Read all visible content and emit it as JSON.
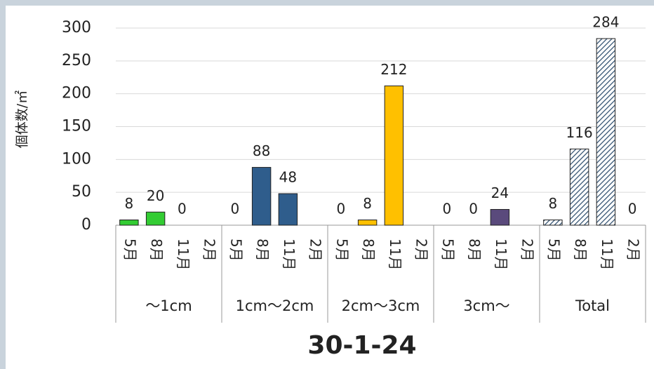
{
  "chart_data": {
    "type": "bar",
    "title": "30-1-24",
    "ylabel": "個体数/㎡",
    "categories": [
      "5月",
      "8月",
      "11月",
      "2月"
    ],
    "groups": [
      {
        "name": "～1cm",
        "color": "#33cc33",
        "values": [
          8,
          20,
          0,
          null
        ]
      },
      {
        "name": "1cm～2cm",
        "color": "#2f5d8c",
        "values": [
          0,
          88,
          48,
          null
        ]
      },
      {
        "name": "2cm～3cm",
        "color": "#ffc000",
        "values": [
          0,
          8,
          212,
          null
        ]
      },
      {
        "name": "3cm～",
        "color": "#5a4a7c",
        "values": [
          0,
          0,
          24,
          null
        ]
      },
      {
        "name": "Total",
        "color": "#2f4f6f",
        "pattern": "hatch",
        "values": [
          8,
          116,
          284,
          0
        ]
      }
    ],
    "ylim": [
      0,
      300
    ],
    "yticks": [
      0,
      50,
      100,
      150,
      200,
      250,
      300
    ],
    "grid": true
  }
}
